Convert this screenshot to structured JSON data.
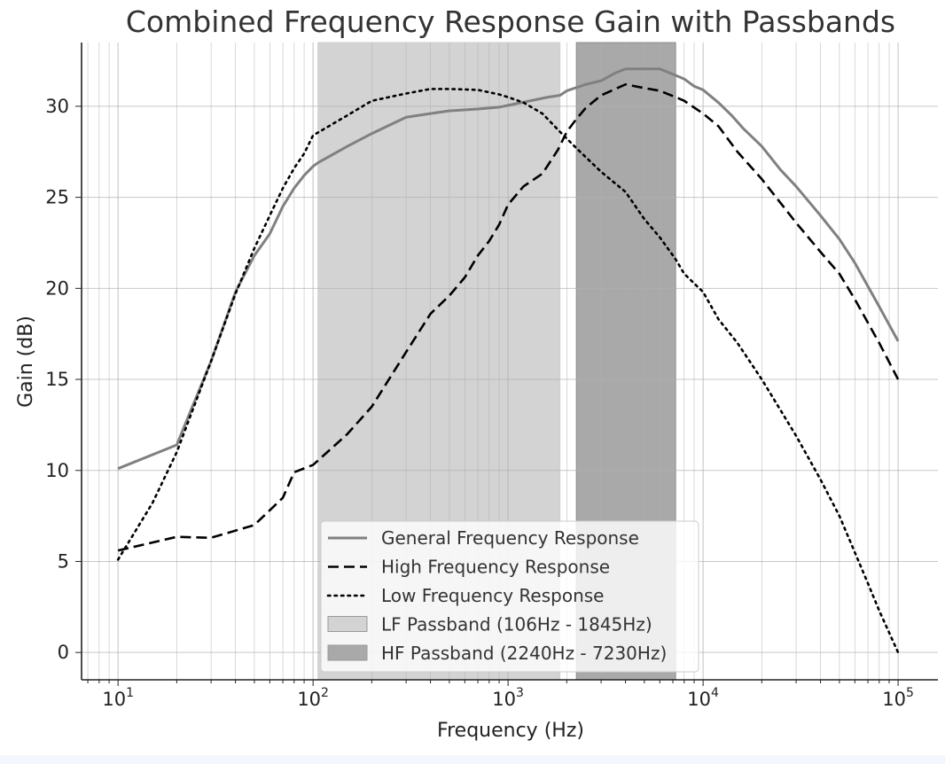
{
  "chart_data": {
    "type": "line",
    "title": "Combined Frequency Response Gain with Passbands",
    "xlabel": "Frequency (Hz)",
    "ylabel": "Gain (dB)",
    "xscale": "log",
    "xlim": [
      6.5,
      160000
    ],
    "ylim": [
      -1.5,
      33.5
    ],
    "xticks": [
      {
        "value": 10,
        "base": "10",
        "exp": "1"
      },
      {
        "value": 100,
        "base": "10",
        "exp": "2"
      },
      {
        "value": 1000,
        "base": "10",
        "exp": "3"
      },
      {
        "value": 10000,
        "base": "10",
        "exp": "4"
      },
      {
        "value": 100000,
        "base": "10",
        "exp": "5"
      }
    ],
    "yticks": [
      0,
      5,
      10,
      15,
      20,
      25,
      30
    ],
    "grid": true,
    "legend_position": "lower-center",
    "bands": [
      {
        "name": "LF Passband (106Hz - 1845Hz)",
        "x0": 106,
        "x1": 1845,
        "color": "#d3d3d3"
      },
      {
        "name": "HF Passband (2240Hz - 7230Hz)",
        "x0": 2240,
        "x1": 7230,
        "color": "#a9a9a9"
      }
    ],
    "series": [
      {
        "name": "General Frequency Response",
        "style": "solid",
        "color": "#808080",
        "points": [
          [
            10,
            10.1
          ],
          [
            20,
            11.4
          ],
          [
            30,
            16
          ],
          [
            40,
            19.8
          ],
          [
            50,
            21.8
          ],
          [
            60,
            23
          ],
          [
            70,
            24.5
          ],
          [
            80,
            25.5
          ],
          [
            90,
            26.2
          ],
          [
            100,
            26.7
          ],
          [
            106,
            26.9
          ],
          [
            150,
            27.8
          ],
          [
            200,
            28.5
          ],
          [
            300,
            29.4
          ],
          [
            400,
            29.6
          ],
          [
            500,
            29.75
          ],
          [
            700,
            29.85
          ],
          [
            900,
            29.95
          ],
          [
            1000,
            30.05
          ],
          [
            1300,
            30.3
          ],
          [
            1600,
            30.5
          ],
          [
            1845,
            30.6
          ],
          [
            2000,
            30.85
          ],
          [
            2500,
            31.2
          ],
          [
            3000,
            31.4
          ],
          [
            3500,
            31.8
          ],
          [
            4000,
            32.05
          ],
          [
            5000,
            32.05
          ],
          [
            6000,
            32.05
          ],
          [
            7230,
            31.7
          ],
          [
            8000,
            31.5
          ],
          [
            9000,
            31.1
          ],
          [
            10000,
            30.9
          ],
          [
            12000,
            30.2
          ],
          [
            14000,
            29.5
          ],
          [
            16000,
            28.8
          ],
          [
            20000,
            27.8
          ],
          [
            25000,
            26.5
          ],
          [
            30000,
            25.6
          ],
          [
            40000,
            24
          ],
          [
            50000,
            22.7
          ],
          [
            60000,
            21.4
          ],
          [
            80000,
            19
          ],
          [
            100000,
            17.1
          ]
        ]
      },
      {
        "name": "High Frequency Response",
        "style": "dashed",
        "color": "#000000",
        "points": [
          [
            10,
            5.6
          ],
          [
            20,
            6.35
          ],
          [
            30,
            6.3
          ],
          [
            50,
            7
          ],
          [
            70,
            8.5
          ],
          [
            80,
            9.9
          ],
          [
            100,
            10.3
          ],
          [
            150,
            12
          ],
          [
            200,
            13.5
          ],
          [
            300,
            16.5
          ],
          [
            400,
            18.6
          ],
          [
            500,
            19.6
          ],
          [
            600,
            20.6
          ],
          [
            700,
            21.8
          ],
          [
            800,
            22.6
          ],
          [
            900,
            23.5
          ],
          [
            1000,
            24.6
          ],
          [
            1200,
            25.6
          ],
          [
            1500,
            26.3
          ],
          [
            1800,
            27.6
          ],
          [
            2000,
            28.6
          ],
          [
            2240,
            29.3
          ],
          [
            2500,
            29.9
          ],
          [
            3000,
            30.6
          ],
          [
            4000,
            31.2
          ],
          [
            5000,
            31.0
          ],
          [
            6000,
            30.85
          ],
          [
            7230,
            30.5
          ],
          [
            8000,
            30.3
          ],
          [
            10000,
            29.6
          ],
          [
            12000,
            28.9
          ],
          [
            15000,
            27.5
          ],
          [
            20000,
            26
          ],
          [
            30000,
            23.6
          ],
          [
            40000,
            22
          ],
          [
            50000,
            20.8
          ],
          [
            60000,
            19.4
          ],
          [
            80000,
            17
          ],
          [
            100000,
            15
          ]
        ]
      },
      {
        "name": "Low Frequency Response",
        "style": "dotted",
        "color": "#000000",
        "points": [
          [
            10,
            5.1
          ],
          [
            15,
            8.2
          ],
          [
            20,
            11
          ],
          [
            30,
            16
          ],
          [
            40,
            19.7
          ],
          [
            50,
            22.2
          ],
          [
            60,
            24
          ],
          [
            70,
            25.5
          ],
          [
            80,
            26.6
          ],
          [
            90,
            27.4
          ],
          [
            100,
            28.4
          ],
          [
            150,
            29.5
          ],
          [
            200,
            30.3
          ],
          [
            300,
            30.7
          ],
          [
            400,
            30.95
          ],
          [
            500,
            30.95
          ],
          [
            700,
            30.9
          ],
          [
            900,
            30.65
          ],
          [
            1000,
            30.5
          ],
          [
            1200,
            30.2
          ],
          [
            1500,
            29.6
          ],
          [
            1845,
            28.6
          ],
          [
            2240,
            27.7
          ],
          [
            3000,
            26.4
          ],
          [
            4000,
            25.3
          ],
          [
            5000,
            23.8
          ],
          [
            6000,
            22.8
          ],
          [
            7230,
            21.6
          ],
          [
            8000,
            20.8
          ],
          [
            10000,
            19.8
          ],
          [
            12000,
            18.3
          ],
          [
            15000,
            17
          ],
          [
            20000,
            15
          ],
          [
            30000,
            11.9
          ],
          [
            40000,
            9.5
          ],
          [
            50000,
            7.5
          ],
          [
            60000,
            5.5
          ],
          [
            70000,
            3.8
          ],
          [
            80000,
            2.3
          ],
          [
            100000,
            0
          ]
        ]
      }
    ]
  }
}
